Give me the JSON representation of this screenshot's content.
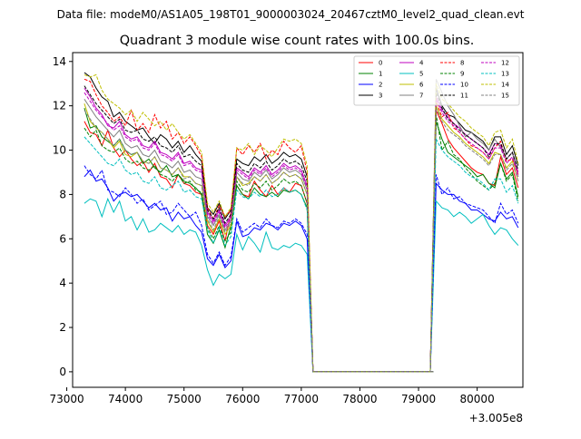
{
  "figure": {
    "suptitle": "Data file: modeM0/AS1A05_198T01_9000003024_20467cztM0_level2_quad_clean.evt"
  },
  "chart_data": {
    "type": "line",
    "title": "Quadrant 3 module wise count rates with 100.0s bins.",
    "xlabel": "",
    "ylabel": "",
    "x_offset_label": "+3.005e8",
    "xlim": [
      73100,
      80780
    ],
    "ylim": [
      -0.7,
      14.4
    ],
    "xticks": [
      73000,
      74000,
      75000,
      76000,
      77000,
      78000,
      79000,
      80000
    ],
    "yticks": [
      0,
      2,
      4,
      6,
      8,
      10,
      12,
      14
    ],
    "legend_position": "top-right",
    "x_start": 73300,
    "x_step": 100,
    "n_points": 72,
    "gap": {
      "from": 76950,
      "to": 79250,
      "value": 0
    },
    "series": [
      {
        "name": "0",
        "color": "#ff0000",
        "dash": "solid",
        "values": [
          11.3,
          10.8,
          10.7,
          10.2,
          10.9,
          10.1,
          9.7,
          10.0,
          9.6,
          9.3,
          9.5,
          9.0,
          9.4,
          8.8,
          8.7,
          8.3,
          8.9,
          8.5,
          8.4,
          8.1,
          8.0,
          6.6,
          6.2,
          6.8,
          5.9,
          7.2,
          8.4,
          8.0,
          7.9,
          8.6,
          8.2,
          7.9,
          8.4,
          8.0,
          8.3,
          8.1,
          8.5,
          8.4,
          7.6,
          0
        ]
      },
      {
        "name": "1",
        "color": "#008000",
        "dash": "solid",
        "values": [
          11.9,
          11.0,
          11.1,
          10.6,
          10.4,
          10.2,
          10.5,
          10.0,
          9.8,
          9.9,
          9.4,
          9.6,
          9.2,
          9.0,
          9.3,
          8.8,
          8.9,
          8.6,
          8.5,
          8.3,
          8.0,
          6.2,
          5.8,
          6.4,
          5.6,
          6.6,
          8.4,
          8.0,
          7.8,
          8.3,
          8.0,
          7.9,
          8.1,
          7.9,
          8.2,
          8.1,
          8.2,
          8.0,
          7.4,
          0
        ]
      },
      {
        "name": "2",
        "color": "#0000ff",
        "dash": "solid",
        "values": [
          8.8,
          9.1,
          8.6,
          8.7,
          8.3,
          7.7,
          8.0,
          8.1,
          7.9,
          8.0,
          7.7,
          7.4,
          7.6,
          7.3,
          7.4,
          6.8,
          7.2,
          6.9,
          7.0,
          6.6,
          6.3,
          5.1,
          4.8,
          5.3,
          4.7,
          5.0,
          6.8,
          6.1,
          6.2,
          6.5,
          6.4,
          6.7,
          6.6,
          6.4,
          6.7,
          6.6,
          6.8,
          6.6,
          6.0,
          0
        ]
      },
      {
        "name": "3",
        "color": "#000000",
        "dash": "solid",
        "values": [
          13.5,
          13.3,
          12.8,
          12.4,
          12.2,
          11.5,
          11.7,
          11.3,
          11.1,
          10.9,
          11.0,
          10.6,
          10.3,
          10.7,
          10.5,
          10.1,
          10.4,
          9.9,
          10.2,
          9.8,
          9.5,
          7.4,
          7.1,
          7.6,
          6.9,
          7.3,
          9.6,
          9.4,
          9.3,
          9.7,
          9.5,
          9.8,
          9.4,
          9.6,
          9.9,
          9.7,
          9.8,
          9.6,
          8.8,
          0
        ]
      },
      {
        "name": "4",
        "color": "#bf00bf",
        "dash": "solid",
        "values": [
          12.8,
          12.4,
          11.9,
          11.6,
          11.1,
          11.0,
          11.3,
          10.7,
          10.5,
          10.6,
          10.2,
          10.1,
          10.4,
          9.9,
          9.8,
          9.6,
          9.9,
          9.4,
          9.5,
          9.2,
          9.1,
          7.2,
          6.8,
          7.3,
          6.6,
          7.0,
          9.2,
          9.0,
          8.8,
          9.2,
          9.0,
          9.3,
          8.9,
          9.1,
          9.4,
          9.2,
          9.3,
          9.1,
          8.4,
          0
        ]
      },
      {
        "name": "5",
        "color": "#00bfbf",
        "dash": "solid",
        "values": [
          7.6,
          7.8,
          7.7,
          7.0,
          7.8,
          7.2,
          7.7,
          6.8,
          7.0,
          6.4,
          6.9,
          6.3,
          6.4,
          6.7,
          6.5,
          6.3,
          6.6,
          6.2,
          6.4,
          6.3,
          5.7,
          4.6,
          3.9,
          4.4,
          4.2,
          4.4,
          6.2,
          5.5,
          6.1,
          5.8,
          5.4,
          6.3,
          5.6,
          5.5,
          5.7,
          5.6,
          5.8,
          5.7,
          5.3,
          0
        ]
      },
      {
        "name": "6",
        "color": "#bfbf00",
        "dash": "solid",
        "values": [
          12.1,
          11.3,
          11.0,
          10.8,
          10.5,
          10.1,
          10.4,
          9.8,
          9.7,
          9.9,
          9.5,
          9.4,
          9.7,
          9.2,
          9.1,
          8.9,
          9.2,
          8.8,
          8.8,
          8.5,
          8.4,
          6.8,
          6.3,
          6.9,
          6.2,
          6.6,
          8.8,
          8.4,
          8.5,
          8.8,
          8.6,
          8.9,
          8.5,
          8.7,
          9.0,
          8.8,
          8.9,
          8.7,
          8.0,
          0
        ]
      },
      {
        "name": "7",
        "color": "#808080",
        "dash": "solid",
        "values": [
          12.3,
          11.9,
          11.5,
          11.2,
          10.9,
          10.6,
          10.9,
          10.3,
          10.1,
          10.2,
          9.8,
          9.7,
          10.0,
          9.5,
          9.4,
          9.2,
          9.5,
          9.0,
          9.1,
          8.8,
          8.7,
          7.0,
          6.6,
          7.1,
          6.4,
          6.8,
          9.0,
          8.7,
          8.6,
          9.0,
          8.8,
          9.1,
          8.7,
          8.9,
          9.2,
          9.0,
          9.1,
          8.9,
          8.2,
          0
        ]
      },
      {
        "name": "8",
        "color": "#ff0000",
        "dash": "dashed",
        "values": [
          13.2,
          13.1,
          12.5,
          12.0,
          11.7,
          11.3,
          11.5,
          11.1,
          11.8,
          10.9,
          11.2,
          10.8,
          11.6,
          11.0,
          11.3,
          10.5,
          10.8,
          10.3,
          10.6,
          10.2,
          9.7,
          7.4,
          6.9,
          7.5,
          7.0,
          7.3,
          10.1,
          9.8,
          10.2,
          9.9,
          10.3,
          9.6,
          10.0,
          9.8,
          10.4,
          10.1,
          9.9,
          10.2,
          9.0,
          0
        ]
      },
      {
        "name": "9",
        "color": "#008000",
        "dash": "dashed",
        "values": [
          11.0,
          10.6,
          10.9,
          10.2,
          10.0,
          9.9,
          10.1,
          9.6,
          9.4,
          9.5,
          9.2,
          9.1,
          9.3,
          8.9,
          8.8,
          8.6,
          8.9,
          8.5,
          8.6,
          8.2,
          8.1,
          6.5,
          6.0,
          6.6,
          5.9,
          6.3,
          8.6,
          8.2,
          8.1,
          8.5,
          8.3,
          8.6,
          8.2,
          8.4,
          8.7,
          8.5,
          8.6,
          8.4,
          7.6,
          0
        ]
      },
      {
        "name": "10",
        "color": "#0000ff",
        "dash": "dashed",
        "values": [
          9.3,
          8.9,
          8.7,
          9.1,
          8.2,
          8.1,
          7.9,
          8.3,
          8.0,
          7.6,
          7.8,
          7.3,
          7.5,
          7.7,
          7.1,
          7.2,
          7.6,
          7.3,
          7.0,
          7.2,
          6.6,
          5.3,
          4.9,
          5.4,
          4.8,
          5.2,
          6.9,
          6.3,
          6.5,
          6.7,
          6.5,
          6.9,
          6.6,
          6.5,
          6.8,
          6.7,
          6.9,
          6.7,
          6.2,
          0
        ]
      },
      {
        "name": "11",
        "color": "#000000",
        "dash": "dashed",
        "values": [
          12.9,
          12.5,
          12.1,
          11.8,
          11.5,
          11.2,
          11.4,
          10.9,
          10.8,
          10.9,
          10.5,
          10.4,
          10.6,
          10.2,
          10.1,
          9.9,
          10.2,
          9.7,
          9.8,
          9.5,
          9.3,
          7.3,
          6.9,
          7.4,
          6.7,
          7.1,
          9.4,
          9.1,
          9.0,
          9.4,
          9.2,
          9.5,
          9.1,
          9.3,
          9.6,
          9.4,
          9.5,
          9.3,
          8.6,
          0
        ]
      },
      {
        "name": "12",
        "color": "#bf00bf",
        "dash": "dashed",
        "values": [
          12.6,
          12.2,
          11.8,
          11.5,
          11.2,
          10.9,
          11.1,
          10.6,
          10.4,
          10.5,
          10.1,
          10.0,
          10.3,
          9.8,
          9.7,
          9.5,
          9.8,
          9.3,
          9.4,
          9.1,
          9.0,
          7.1,
          6.7,
          7.2,
          6.5,
          6.9,
          9.1,
          8.9,
          8.7,
          9.1,
          8.9,
          9.2,
          8.8,
          9.0,
          9.3,
          9.1,
          9.2,
          9.0,
          8.3,
          0
        ]
      },
      {
        "name": "13",
        "color": "#00bfbf",
        "dash": "dashed",
        "values": [
          10.6,
          10.3,
          10.0,
          9.7,
          9.4,
          9.3,
          9.6,
          9.1,
          8.9,
          9.0,
          8.6,
          8.5,
          8.8,
          8.3,
          8.2,
          8.4,
          8.6,
          8.1,
          8.2,
          7.9,
          7.8,
          6.4,
          5.8,
          6.5,
          5.7,
          6.1,
          8.2,
          7.9,
          7.8,
          8.1,
          7.9,
          8.2,
          7.9,
          8.0,
          8.3,
          8.1,
          8.2,
          8.0,
          7.3,
          0
        ]
      },
      {
        "name": "14",
        "color": "#bfbf00",
        "dash": "dashed",
        "values": [
          13.4,
          13.3,
          13.4,
          12.7,
          12.3,
          12.1,
          11.9,
          11.6,
          11.8,
          11.3,
          11.7,
          11.4,
          11.1,
          11.3,
          10.9,
          11.2,
          10.8,
          10.5,
          10.7,
          10.3,
          9.9,
          7.6,
          7.2,
          7.7,
          7.0,
          7.4,
          10.1,
          10.0,
          10.3,
          9.8,
          10.2,
          10.0,
          9.7,
          10.1,
          10.5,
          10.4,
          10.5,
          10.3,
          9.3,
          0
        ]
      },
      {
        "name": "15",
        "color": "#808080",
        "dash": "dashed",
        "values": [
          11.8,
          11.4,
          11.0,
          10.8,
          10.5,
          10.2,
          10.5,
          10.0,
          9.8,
          9.9,
          9.5,
          9.4,
          9.7,
          9.2,
          9.1,
          8.9,
          9.2,
          8.7,
          8.8,
          8.5,
          8.4,
          6.9,
          6.4,
          7.0,
          6.3,
          6.7,
          8.8,
          8.5,
          8.4,
          8.8,
          8.6,
          8.9,
          8.5,
          8.7,
          9.0,
          8.8,
          8.9,
          8.7,
          8.0,
          0
        ]
      }
    ],
    "post_gap_values": {
      "0": [
        0,
        11.8,
        11.2,
        10.5,
        10.1,
        9.8,
        9.5,
        9.2,
        9.0,
        8.9,
        8.5,
        8.4,
        9.7,
        8.9,
        9.2,
        8.3
      ],
      "1": [
        0,
        11.3,
        10.5,
        9.9,
        9.7,
        9.5,
        9.3,
        9.1,
        8.8,
        8.9,
        8.5,
        8.3,
        9.4,
        8.7,
        9.0,
        7.9
      ],
      "2": [
        0,
        8.5,
        8.2,
        8.0,
        8.0,
        7.7,
        7.6,
        7.3,
        7.3,
        7.1,
        6.9,
        6.8,
        7.2,
        6.9,
        7.0,
        6.5
      ],
      "3": [
        0,
        12.8,
        12.0,
        11.6,
        11.5,
        11.2,
        10.9,
        10.8,
        10.6,
        10.4,
        10.0,
        10.6,
        10.6,
        9.8,
        10.2,
        9.3
      ],
      "4": [
        0,
        12.4,
        11.8,
        11.5,
        11.2,
        11.0,
        10.7,
        10.5,
        10.3,
        10.1,
        9.8,
        10.3,
        10.2,
        9.6,
        9.9,
        9.0
      ],
      "5": [
        0,
        7.7,
        7.4,
        7.3,
        7.0,
        7.2,
        7.0,
        6.7,
        6.9,
        7.1,
        6.6,
        6.2,
        6.5,
        6.4,
        6.0,
        5.7
      ],
      "6": [
        0,
        12.0,
        11.4,
        11.1,
        10.8,
        10.6,
        10.3,
        10.1,
        9.9,
        9.7,
        9.4,
        9.9,
        9.8,
        9.2,
        9.5,
        8.6
      ],
      "7": [
        0,
        13.2,
        12.6,
        12.0,
        11.6,
        11.1,
        10.6,
        10.8,
        10.5,
        10.3,
        10.0,
        10.5,
        10.1,
        9.6,
        9.9,
        8.8
      ],
      "8": [
        0,
        12.2,
        11.5,
        11.7,
        11.0,
        10.8,
        10.5,
        10.2,
        10.1,
        9.9,
        9.6,
        10.1,
        10.4,
        9.5,
        9.6,
        8.9
      ],
      "9": [
        0,
        11.6,
        10.0,
        10.4,
        9.8,
        9.6,
        9.2,
        8.9,
        8.6,
        8.4,
        8.2,
        8.5,
        9.4,
        8.6,
        8.9,
        7.7
      ],
      "10": [
        0,
        8.9,
        8.0,
        8.3,
        7.8,
        7.9,
        7.6,
        7.5,
        7.4,
        7.3,
        7.0,
        6.7,
        7.6,
        7.1,
        7.3,
        6.7
      ],
      "11": [
        0,
        12.6,
        11.9,
        11.4,
        11.2,
        10.9,
        10.7,
        10.5,
        10.3,
        10.1,
        9.7,
        10.3,
        10.3,
        9.6,
        9.9,
        9.1
      ],
      "12": [
        0,
        12.3,
        11.7,
        11.3,
        11.1,
        10.8,
        10.5,
        10.3,
        10.1,
        9.9,
        9.6,
        10.1,
        10.1,
        9.4,
        9.7,
        8.8
      ],
      "13": [
        0,
        10.5,
        10.0,
        9.7,
        9.5,
        9.3,
        9.0,
        8.8,
        8.7,
        8.5,
        8.2,
        8.7,
        8.7,
        8.1,
        8.4,
        7.6
      ],
      "14": [
        0,
        13.0,
        12.3,
        12.1,
        11.8,
        11.5,
        11.3,
        11.0,
        10.8,
        10.6,
        10.2,
        10.8,
        10.9,
        10.1,
        10.5,
        9.4
      ],
      "15": [
        0,
        11.9,
        11.3,
        10.9,
        10.7,
        10.5,
        10.2,
        10.0,
        9.8,
        9.6,
        9.3,
        9.8,
        9.8,
        9.1,
        9.4,
        8.6
      ]
    },
    "post_gap_x_start": 79200
  }
}
